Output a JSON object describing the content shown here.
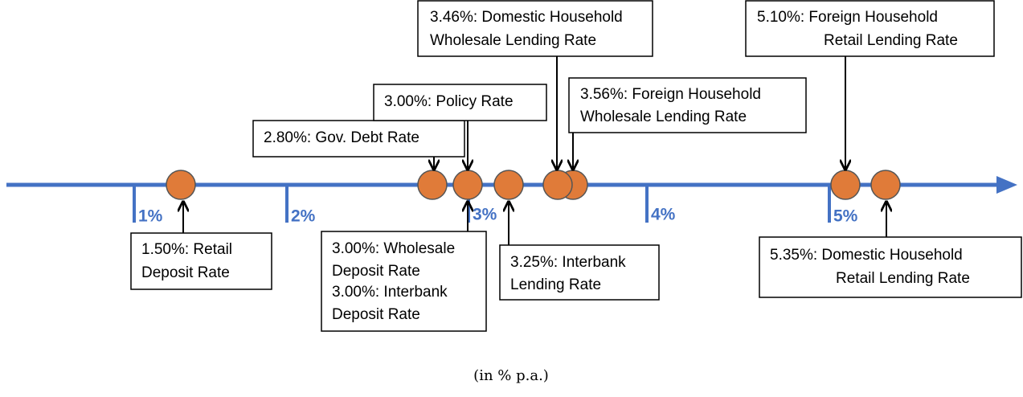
{
  "axis": {
    "ticks": [
      "1%",
      "2%",
      "3%",
      "4%",
      "5%"
    ]
  },
  "rates": [
    {
      "lines": [
        "1.50%: Retail",
        "Deposit Rate"
      ]
    },
    {
      "lines": [
        "2.80%: Gov. Debt Rate"
      ]
    },
    {
      "lines": [
        "3.00%: Policy Rate"
      ]
    },
    {
      "lines": [
        "3.00%: Wholesale",
        "Deposit Rate",
        "3.00%: Interbank",
        "Deposit Rate"
      ]
    },
    {
      "lines": [
        "3.25%: Interbank",
        "Lending Rate"
      ]
    },
    {
      "lines": [
        "3.46%: Domestic Household",
        "Wholesale Lending Rate"
      ]
    },
    {
      "lines": [
        "3.56%: Foreign Household",
        "Wholesale Lending Rate"
      ]
    },
    {
      "lines": [
        "5.10%: Foreign Household",
        "Retail Lending Rate"
      ]
    },
    {
      "lines": [
        "5.35%: Domestic Household",
        "Retail Lending Rate"
      ]
    }
  ],
  "footnote": "(in % p.a.)"
}
